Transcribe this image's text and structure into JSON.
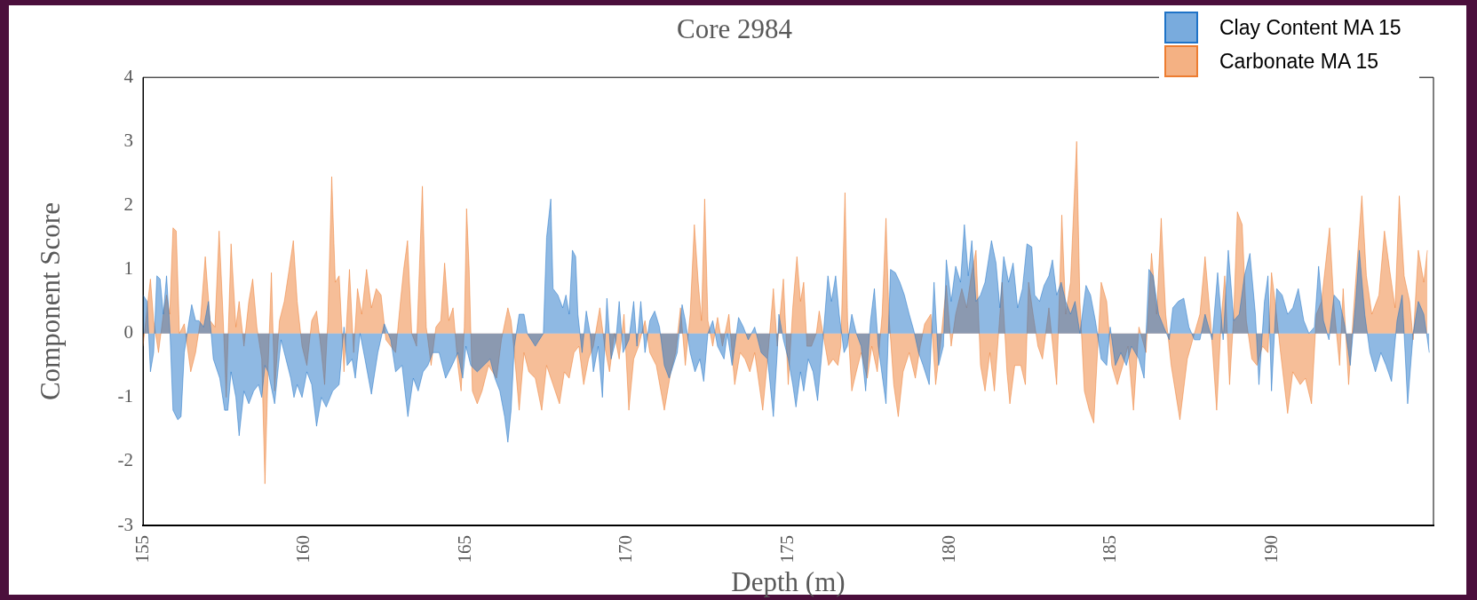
{
  "chart_data": {
    "type": "area",
    "title": "Core 2984",
    "xlabel": "Depth (m)",
    "ylabel": "Component Score",
    "xlim": [
      155,
      195
    ],
    "xticks": [
      155,
      160,
      165,
      170,
      175,
      180,
      185,
      190
    ],
    "ylim": [
      -3,
      4
    ],
    "yticks": [
      -3,
      -2,
      -1,
      0,
      1,
      2,
      3,
      4
    ],
    "legend": "top right",
    "grid": false,
    "marker": "none",
    "series": [
      {
        "name": "Clay Content MA 15",
        "color": "#1f73c7",
        "x": [
          155.0,
          155.13,
          155.23,
          155.33,
          155.43,
          155.53,
          155.63,
          155.73,
          155.83,
          155.93,
          156.08,
          156.18,
          156.28,
          156.43,
          156.51,
          156.63,
          156.73,
          156.88,
          157.03,
          157.18,
          157.38,
          157.53,
          157.63,
          157.73,
          157.88,
          157.98,
          158.13,
          158.28,
          158.43,
          158.58,
          158.68,
          158.78,
          158.88,
          159.08,
          159.28,
          159.43,
          159.58,
          159.68,
          159.78,
          159.93,
          160.08,
          160.23,
          160.38,
          160.53,
          160.68,
          160.88,
          161.08,
          161.23,
          161.33,
          161.48,
          161.58,
          161.73,
          161.88,
          162.08,
          162.28,
          162.48,
          162.68,
          162.83,
          163.03,
          163.21,
          163.38,
          163.53,
          163.68,
          163.83,
          163.98,
          164.18,
          164.38,
          164.58,
          164.76,
          164.91,
          165.01,
          165.16,
          165.36,
          165.56,
          165.76,
          165.91,
          166.06,
          166.21,
          166.31,
          166.41,
          166.51,
          166.66,
          166.81,
          166.91,
          167.16,
          167.41,
          167.51,
          167.64,
          167.71,
          167.86,
          168.01,
          168.11,
          168.21,
          168.31,
          168.41,
          168.48,
          168.61,
          168.74,
          168.86,
          168.96,
          169.11,
          169.24,
          169.38,
          169.51,
          169.66,
          169.76,
          169.88,
          170.06,
          170.21,
          170.31,
          170.43,
          170.56,
          170.71,
          170.86,
          171.01,
          171.16,
          171.31,
          171.56,
          171.71,
          171.81,
          171.96,
          172.11,
          172.26,
          172.38,
          172.51,
          172.66,
          172.81,
          173.01,
          173.11,
          173.26,
          173.46,
          173.61,
          173.76,
          173.96,
          174.16,
          174.36,
          174.54,
          174.66,
          174.71,
          174.85,
          175.0,
          175.14,
          175.24,
          175.38,
          175.48,
          175.62,
          175.77,
          175.91,
          176.06,
          176.23,
          176.34,
          176.47,
          176.58,
          176.73,
          176.83,
          176.97,
          177.11,
          177.26,
          177.4,
          177.55,
          177.67,
          177.79,
          178.03,
          178.17,
          178.32,
          178.46,
          178.6,
          178.75,
          178.89,
          179.04,
          179.18,
          179.37,
          179.52,
          179.66,
          179.81,
          179.9,
          180.05,
          180.19,
          180.34,
          180.46,
          180.58,
          180.69,
          180.82,
          180.96,
          181.1,
          181.3,
          181.44,
          181.56,
          181.68,
          181.83,
          181.97,
          182.11,
          182.26,
          182.4,
          182.55,
          182.64,
          182.79,
          182.93,
          183.08,
          183.19,
          183.32,
          183.46,
          183.6,
          183.75,
          183.89,
          184.04,
          184.23,
          184.37,
          184.52,
          184.7,
          184.87,
          184.98,
          185.14,
          185.31,
          185.48,
          185.64,
          185.87,
          186.03,
          186.18,
          186.31,
          186.48,
          186.64,
          186.81,
          186.92,
          187.09,
          187.26,
          187.42,
          187.59,
          187.76,
          187.92,
          188.14,
          188.31,
          188.48,
          188.64,
          188.81,
          188.98,
          189.14,
          189.31,
          189.48,
          189.59,
          189.76,
          189.87,
          189.98,
          190.14,
          190.31,
          190.48,
          190.64,
          190.81,
          190.98,
          191.14,
          191.31,
          191.44,
          191.59,
          191.76,
          191.92,
          192.09,
          192.26,
          192.42,
          192.59,
          192.7,
          192.87,
          193.03,
          193.2,
          193.37,
          193.53,
          193.7,
          193.87,
          194.03,
          194.2,
          194.37,
          194.53,
          194.7,
          194.87
        ],
        "values": [
          0.6,
          0.5,
          -0.6,
          -0.3,
          0.9,
          0.85,
          0.3,
          0.9,
          0.1,
          -1.2,
          -1.35,
          -1.3,
          -0.3,
          0.2,
          0.45,
          0.2,
          0.2,
          0.1,
          0.5,
          -0.4,
          -0.7,
          -1.2,
          -1.2,
          -0.6,
          -1.0,
          -1.6,
          -0.9,
          -1.1,
          -0.9,
          -0.8,
          -1.0,
          -0.5,
          -0.6,
          -1.1,
          -0.1,
          -0.4,
          -0.7,
          -1.0,
          -0.8,
          -1.0,
          -0.6,
          -0.8,
          -1.45,
          -1.0,
          -1.15,
          -0.9,
          -0.8,
          0.1,
          -0.5,
          -0.4,
          -0.7,
          0.0,
          -0.4,
          -0.95,
          -0.3,
          0.15,
          -0.1,
          -0.6,
          -0.5,
          -1.3,
          -0.7,
          -0.9,
          -0.6,
          -0.5,
          -0.3,
          -0.3,
          -0.7,
          -0.5,
          -0.3,
          -0.7,
          -0.2,
          -0.5,
          -0.6,
          -0.5,
          -0.4,
          -0.7,
          -0.9,
          -1.3,
          -1.7,
          -1.2,
          -0.2,
          0.3,
          0.3,
          0.0,
          -0.2,
          0.0,
          1.5,
          2.1,
          0.7,
          0.6,
          0.4,
          0.6,
          0.3,
          1.3,
          1.2,
          0.3,
          -0.3,
          0.35,
          0.0,
          -0.6,
          -0.2,
          -1.0,
          0.55,
          -0.4,
          -0.1,
          0.5,
          -0.3,
          -0.1,
          0.5,
          -0.2,
          0.5,
          -0.3,
          0.2,
          0.35,
          0.1,
          -0.5,
          -0.7,
          -0.3,
          0.45,
          0.2,
          -0.3,
          -0.6,
          -0.4,
          -0.75,
          0.0,
          0.2,
          -0.2,
          -0.4,
          0.0,
          -0.5,
          0.25,
          0.1,
          -0.1,
          0.1,
          -0.3,
          -0.4,
          -1.3,
          -0.3,
          0.3,
          -0.1,
          -0.4,
          -0.8,
          -1.15,
          -0.6,
          -0.9,
          -0.4,
          -0.6,
          -1.05,
          -0.2,
          0.9,
          0.5,
          0.9,
          0.3,
          -0.3,
          -0.2,
          0.3,
          0.0,
          -0.2,
          -0.9,
          0.2,
          0.7,
          -0.2,
          -1.1,
          1.0,
          0.95,
          0.8,
          0.6,
          0.3,
          0.05,
          -0.3,
          -0.5,
          -0.8,
          0.8,
          -0.5,
          -0.2,
          1.15,
          0.5,
          1.05,
          0.8,
          1.7,
          0.9,
          1.45,
          0.5,
          0.6,
          0.8,
          1.45,
          1.1,
          0.4,
          1.2,
          0.8,
          1.1,
          0.4,
          0.7,
          1.4,
          1.35,
          0.6,
          0.5,
          0.75,
          0.9,
          1.15,
          0.6,
          0.8,
          0.5,
          0.3,
          0.5,
          0.0,
          0.75,
          0.6,
          0.2,
          -0.4,
          -0.5,
          0.1,
          -0.5,
          -0.3,
          -0.5,
          -0.2,
          -0.4,
          -0.7,
          1.0,
          0.9,
          0.3,
          0.1,
          -0.1,
          0.4,
          0.5,
          0.55,
          0.1,
          -0.1,
          -0.1,
          0.3,
          -0.1,
          0.95,
          -0.1,
          1.3,
          0.2,
          0.3,
          0.9,
          1.25,
          0.3,
          -0.8,
          0.5,
          0.9,
          -0.9,
          0.7,
          0.6,
          0.3,
          0.4,
          0.7,
          0.2,
          0.0,
          0.1,
          1.05,
          0.2,
          -0.1,
          0.6,
          0.5,
          0.1,
          -0.5,
          0.5,
          1.3,
          0.3,
          -0.3,
          -0.6,
          -0.3,
          -0.5,
          -0.75,
          0.2,
          0.6,
          -1.1,
          0.0,
          0.5,
          0.3,
          -0.3
        ]
      },
      {
        "name": "Carbonate MA 15",
        "color": "#ed7d31",
        "x": [
          155.0,
          155.13,
          155.23,
          155.33,
          155.48,
          155.63,
          155.73,
          155.83,
          155.93,
          156.03,
          156.13,
          156.28,
          156.48,
          156.63,
          156.78,
          156.93,
          157.08,
          157.23,
          157.36,
          157.48,
          157.58,
          157.73,
          157.88,
          157.98,
          158.13,
          158.28,
          158.4,
          158.53,
          158.68,
          158.78,
          158.88,
          158.98,
          159.08,
          159.23,
          159.38,
          159.53,
          159.66,
          159.78,
          159.93,
          160.08,
          160.23,
          160.38,
          160.53,
          160.63,
          160.73,
          160.85,
          160.96,
          161.08,
          161.23,
          161.4,
          161.53,
          161.65,
          161.78,
          161.93,
          162.08,
          162.23,
          162.38,
          162.53,
          162.68,
          162.83,
          162.98,
          163.08,
          163.2,
          163.33,
          163.48,
          163.66,
          163.78,
          163.93,
          164.08,
          164.23,
          164.35,
          164.48,
          164.61,
          164.76,
          164.86,
          164.96,
          165.03,
          165.11,
          165.21,
          165.36,
          165.51,
          165.71,
          165.96,
          166.11,
          166.31,
          166.41,
          166.51,
          166.66,
          166.81,
          166.96,
          167.16,
          167.36,
          167.51,
          167.71,
          167.91,
          168.06,
          168.21,
          168.36,
          168.51,
          168.66,
          168.81,
          168.96,
          169.16,
          169.31,
          169.46,
          169.61,
          169.76,
          169.91,
          170.06,
          170.21,
          170.36,
          170.56,
          170.71,
          170.91,
          171.16,
          171.36,
          171.51,
          171.66,
          171.81,
          171.96,
          172.09,
          172.21,
          172.31,
          172.41,
          172.51,
          172.66,
          172.81,
          172.96,
          173.16,
          173.34,
          173.51,
          173.66,
          173.81,
          173.96,
          174.21,
          174.36,
          174.54,
          174.66,
          174.85,
          175.0,
          175.14,
          175.27,
          175.38,
          175.48,
          175.58,
          175.72,
          175.87,
          175.96,
          176.11,
          176.25,
          176.39,
          176.54,
          176.63,
          176.76,
          176.84,
          176.97,
          177.11,
          177.26,
          177.45,
          177.59,
          177.76,
          177.91,
          178.03,
          178.12,
          178.27,
          178.41,
          178.56,
          178.75,
          178.94,
          179.09,
          179.23,
          179.42,
          179.57,
          179.71,
          179.9,
          180.05,
          180.19,
          180.38,
          180.53,
          180.67,
          180.82,
          180.96,
          181.1,
          181.25,
          181.39,
          181.54,
          181.63,
          181.78,
          181.87,
          182.02,
          182.21,
          182.35,
          182.45,
          182.59,
          182.74,
          182.88,
          183.08,
          183.32,
          183.48,
          183.6,
          183.75,
          183.94,
          184.04,
          184.18,
          184.33,
          184.47,
          184.7,
          184.87,
          185.03,
          185.2,
          185.37,
          185.53,
          185.7,
          185.87,
          186.09,
          186.26,
          186.42,
          186.56,
          186.7,
          186.87,
          187.14,
          187.37,
          187.59,
          187.76,
          187.92,
          188.09,
          188.28,
          188.42,
          188.53,
          188.68,
          188.81,
          188.92,
          189.07,
          189.2,
          189.37,
          189.53,
          189.7,
          189.87,
          189.98,
          190.09,
          190.26,
          190.48,
          190.64,
          190.87,
          191.03,
          191.22,
          191.37,
          191.53,
          191.78,
          191.92,
          192.09,
          192.2,
          192.37,
          192.53,
          192.78,
          192.92,
          193.09,
          193.31,
          193.48,
          193.64,
          193.81,
          193.94,
          194.09,
          194.26,
          194.37,
          194.53,
          194.7,
          194.81
        ],
        "values": [
          -0.2,
          0.4,
          0.85,
          0.2,
          -0.3,
          0.3,
          0.6,
          0.3,
          1.65,
          1.6,
          0.0,
          0.15,
          -0.6,
          -0.3,
          0.2,
          1.2,
          0.2,
          0.1,
          1.6,
          0.3,
          -1.0,
          1.4,
          0.1,
          0.5,
          -0.2,
          0.5,
          0.85,
          0.1,
          -0.4,
          -2.35,
          -0.5,
          0.95,
          -0.9,
          0.2,
          0.5,
          1.0,
          1.45,
          0.5,
          -0.2,
          -0.5,
          0.2,
          0.35,
          -0.3,
          -0.8,
          0.2,
          2.45,
          0.8,
          0.9,
          -0.6,
          1.0,
          -0.3,
          0.7,
          0.3,
          1.0,
          0.4,
          0.7,
          0.6,
          -0.1,
          -0.2,
          -0.3,
          0.5,
          1.0,
          1.45,
          0.0,
          -0.2,
          2.3,
          0.1,
          -0.5,
          0.1,
          0.2,
          1.1,
          0.2,
          0.4,
          -0.5,
          -0.9,
          0.1,
          1.95,
          1.0,
          -0.9,
          -1.1,
          -0.9,
          -0.5,
          -0.7,
          -0.1,
          0.4,
          0.2,
          -0.3,
          -1.2,
          -0.3,
          -0.6,
          -0.7,
          -1.2,
          -0.5,
          -0.8,
          -1.1,
          -0.6,
          -0.7,
          -0.3,
          -0.2,
          -0.8,
          -0.4,
          -0.2,
          0.4,
          -0.2,
          -0.6,
          0.0,
          -0.4,
          0.3,
          -1.2,
          -0.4,
          -0.2,
          0.2,
          -0.3,
          -0.5,
          -1.2,
          -0.6,
          -0.3,
          0.4,
          -0.5,
          0.3,
          1.7,
          0.8,
          0.2,
          2.1,
          0.2,
          -0.2,
          0.25,
          -0.2,
          0.3,
          -0.8,
          -0.3,
          -0.4,
          -0.6,
          -0.3,
          -1.2,
          -0.4,
          0.7,
          -0.2,
          0.85,
          -0.8,
          0.4,
          1.2,
          0.5,
          0.8,
          -0.2,
          -0.2,
          0.0,
          0.35,
          -0.1,
          -0.5,
          -0.4,
          -0.5,
          -0.2,
          2.2,
          0.2,
          -0.9,
          -0.6,
          -0.3,
          -0.7,
          -0.2,
          -0.6,
          0.3,
          1.8,
          0.3,
          -0.8,
          -1.3,
          -0.6,
          -0.3,
          -0.7,
          -0.2,
          0.15,
          0.3,
          -0.8,
          -0.2,
          0.75,
          -0.2,
          0.3,
          0.7,
          0.4,
          0.9,
          1.3,
          -0.5,
          -0.9,
          -0.3,
          -0.9,
          0.15,
          0.8,
          -0.6,
          -1.1,
          -0.5,
          -0.5,
          -0.8,
          0.8,
          0.3,
          -0.2,
          -0.4,
          0.4,
          -0.8,
          1.85,
          0.3,
          0.8,
          3.0,
          0.5,
          -0.9,
          -1.2,
          -1.4,
          0.8,
          0.5,
          -0.5,
          -0.8,
          -0.5,
          -0.2,
          -1.2,
          0.1,
          -0.3,
          1.25,
          0.3,
          1.8,
          0.3,
          -0.5,
          -1.35,
          -0.4,
          0.0,
          0.3,
          1.2,
          0.2,
          -1.2,
          0.2,
          0.9,
          -0.8,
          0.3,
          1.9,
          1.7,
          0.2,
          -0.4,
          -0.5,
          -0.2,
          -0.3,
          0.95,
          0.5,
          -0.3,
          -1.25,
          -0.6,
          -0.8,
          -0.7,
          -1.1,
          0.3,
          0.5,
          1.65,
          0.4,
          -0.5,
          0.7,
          -0.8,
          0.4,
          2.15,
          0.9,
          0.3,
          0.6,
          1.6,
          1.0,
          0.4,
          2.15,
          0.9,
          0.5,
          -0.1,
          1.3,
          0.8,
          1.3
        ]
      }
    ]
  }
}
